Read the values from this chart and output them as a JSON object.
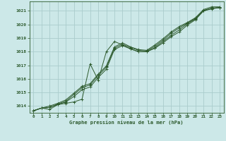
{
  "title": "Graphe pression niveau de la mer (hPa)",
  "bg_color": "#cce8e8",
  "grid_color": "#aacccc",
  "line_color": "#2d5a2d",
  "xlim": [
    -0.5,
    23.5
  ],
  "ylim": [
    1013.5,
    1021.7
  ],
  "yticks": [
    1014,
    1015,
    1016,
    1017,
    1018,
    1019,
    1020,
    1021
  ],
  "xticks": [
    0,
    1,
    2,
    3,
    4,
    5,
    6,
    7,
    8,
    9,
    10,
    11,
    12,
    13,
    14,
    15,
    16,
    17,
    18,
    19,
    20,
    21,
    22,
    23
  ],
  "series": [
    {
      "x": [
        0,
        1,
        2,
        3,
        4,
        5,
        6,
        7,
        8,
        9,
        10,
        11,
        12,
        13,
        14,
        15,
        16,
        17,
        18,
        19,
        20,
        21,
        22,
        23
      ],
      "y": [
        1013.65,
        1013.85,
        1013.75,
        1014.1,
        1014.2,
        1014.3,
        1014.5,
        1017.1,
        1015.9,
        1018.0,
        1018.75,
        1018.5,
        1018.2,
        1018.0,
        1018.0,
        1018.25,
        1018.65,
        1019.1,
        1019.45,
        1019.95,
        1020.35,
        1021.0,
        1021.15,
        1021.25
      ]
    },
    {
      "x": [
        0,
        1,
        2,
        3,
        4,
        5,
        6,
        7,
        8,
        9,
        10,
        11,
        12,
        13,
        14,
        15,
        16,
        17,
        18,
        19,
        20,
        21,
        22,
        23
      ],
      "y": [
        1013.65,
        1013.85,
        1013.9,
        1014.1,
        1014.3,
        1014.7,
        1015.2,
        1015.4,
        1016.1,
        1016.7,
        1018.15,
        1018.45,
        1018.2,
        1018.0,
        1018.0,
        1018.3,
        1018.75,
        1019.2,
        1019.6,
        1020.05,
        1020.4,
        1021.0,
        1021.2,
        1021.25
      ]
    },
    {
      "x": [
        0,
        1,
        2,
        3,
        4,
        5,
        6,
        7,
        8,
        9,
        10,
        11,
        12,
        13,
        14,
        15,
        16,
        17,
        18,
        19,
        20,
        21,
        22,
        23
      ],
      "y": [
        1013.65,
        1013.85,
        1013.9,
        1014.15,
        1014.35,
        1014.85,
        1015.35,
        1015.55,
        1016.25,
        1016.85,
        1018.25,
        1018.55,
        1018.3,
        1018.1,
        1018.05,
        1018.4,
        1018.85,
        1019.35,
        1019.75,
        1020.1,
        1020.45,
        1021.05,
        1021.2,
        1021.25
      ]
    },
    {
      "x": [
        0,
        1,
        2,
        3,
        4,
        5,
        6,
        7,
        8,
        9,
        10,
        11,
        12,
        13,
        14,
        15,
        16,
        17,
        18,
        19,
        20,
        21,
        22,
        23
      ],
      "y": [
        1013.65,
        1013.85,
        1014.0,
        1014.2,
        1014.45,
        1014.95,
        1015.45,
        1015.65,
        1016.35,
        1016.95,
        1018.35,
        1018.65,
        1018.35,
        1018.15,
        1018.1,
        1018.5,
        1018.95,
        1019.45,
        1019.85,
        1020.15,
        1020.5,
        1021.1,
        1021.3,
        1021.3
      ]
    }
  ]
}
